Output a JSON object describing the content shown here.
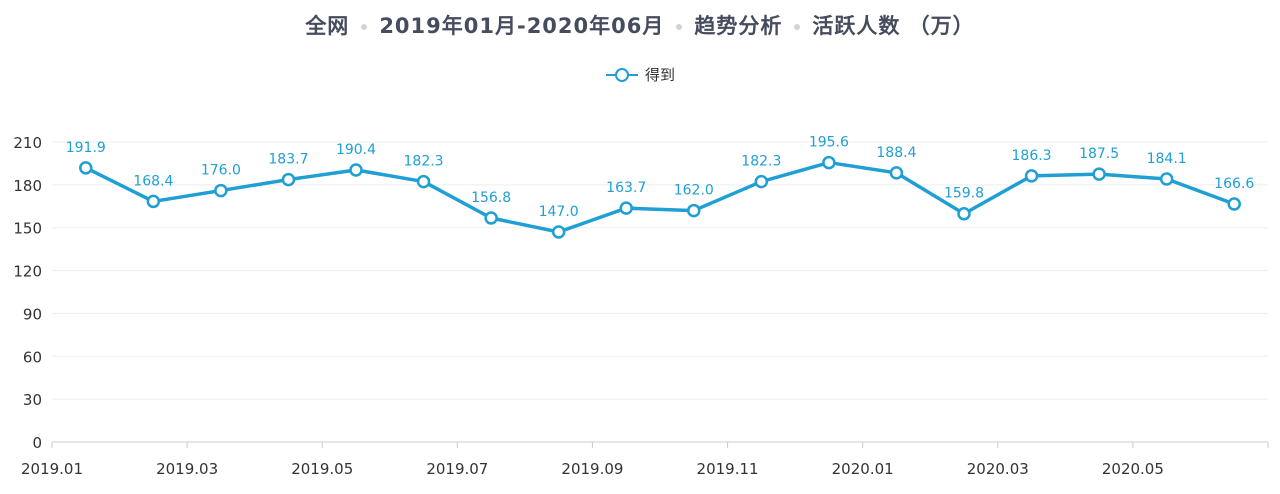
{
  "title": {
    "segments": [
      "全网",
      "2019年01月-2020年06月",
      "趋势分析",
      "活跃人数 （万）"
    ]
  },
  "legend": {
    "label": "得到"
  },
  "colors": {
    "series": "#1f9fd4",
    "axis": "#333333",
    "grid": "#eeeeee",
    "label": "#1f9fd4"
  },
  "chart_data": {
    "type": "line",
    "title": "全网 2019年01月-2020年06月 趋势分析 活跃人数 （万）",
    "xlabel": "",
    "ylabel": "",
    "ylim": [
      0,
      210
    ],
    "yticks": [
      0,
      30,
      60,
      90,
      120,
      150,
      180,
      210
    ],
    "x": [
      "2019.01",
      "2019.02",
      "2019.03",
      "2019.04",
      "2019.05",
      "2019.06",
      "2019.07",
      "2019.08",
      "2019.09",
      "2019.10",
      "2019.11",
      "2019.12",
      "2020.01",
      "2020.02",
      "2020.03",
      "2020.04",
      "2020.05",
      "2020.06"
    ],
    "xtick_labels": [
      "2019.01",
      "2019.03",
      "2019.05",
      "2019.07",
      "2019.09",
      "2019.11",
      "2020.01",
      "2020.03",
      "2020.05"
    ],
    "series": [
      {
        "name": "得到",
        "values": [
          191.9,
          168.4,
          176.0,
          183.7,
          190.4,
          182.3,
          156.8,
          147.0,
          163.7,
          162.0,
          182.3,
          195.6,
          188.4,
          159.8,
          186.3,
          187.5,
          184.1,
          166.6
        ]
      }
    ],
    "data_labels": [
      "191.9",
      "168.4",
      "176.0",
      "183.7",
      "190.4",
      "182.3",
      "156.8",
      "147.0",
      "163.7",
      "162.0",
      "182.3",
      "195.6",
      "188.4",
      "159.8",
      "186.3",
      "187.5",
      "184.1",
      "166.6"
    ],
    "grid": true,
    "legend_position": "top-center"
  }
}
